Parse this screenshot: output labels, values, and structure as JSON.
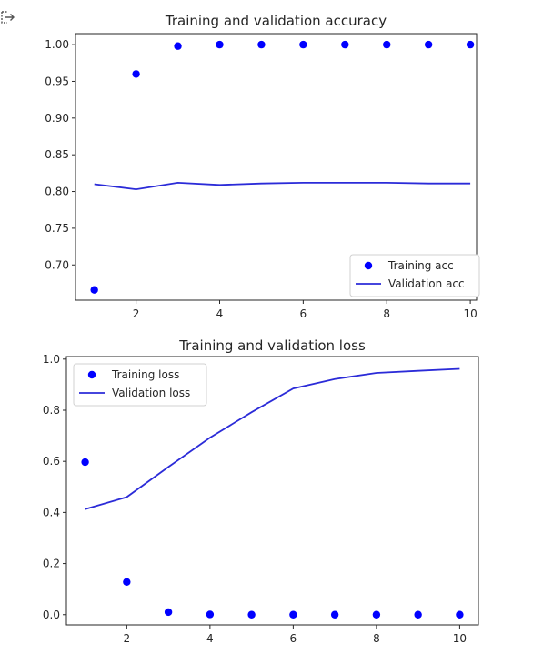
{
  "output_icon": "output-arrow-icon",
  "colors": {
    "train": "#0000ff",
    "val": "#2b2bd8",
    "axis": "#262626"
  },
  "chart_data": [
    {
      "type": "scatter+line",
      "title": "Training and validation accuracy",
      "xlabel": "",
      "ylabel": "",
      "xlim": [
        0.55,
        10.15
      ],
      "ylim": [
        0.652,
        1.015
      ],
      "xticks": [
        2,
        4,
        6,
        8,
        10
      ],
      "yticks": [
        0.7,
        0.75,
        0.8,
        0.85,
        0.9,
        0.95,
        1.0
      ],
      "ytick_labels": [
        "0.70",
        "0.75",
        "0.80",
        "0.85",
        "0.90",
        "0.95",
        "1.00"
      ],
      "xtick_labels": [
        "2",
        "4",
        "6",
        "8",
        "10"
      ],
      "legend": "lower right",
      "grid": false,
      "series": [
        {
          "name": "Training acc",
          "kind": "scatter",
          "x": [
            1,
            2,
            3,
            4,
            5,
            6,
            7,
            8,
            9,
            10
          ],
          "y": [
            0.666,
            0.96,
            0.998,
            1.0,
            1.0,
            1.0,
            1.0,
            1.0,
            1.0,
            1.0
          ]
        },
        {
          "name": "Validation acc",
          "kind": "line",
          "x": [
            1,
            2,
            3,
            4,
            5,
            6,
            7,
            8,
            9,
            10
          ],
          "y": [
            0.81,
            0.803,
            0.812,
            0.809,
            0.811,
            0.812,
            0.812,
            0.812,
            0.811,
            0.811
          ]
        }
      ]
    },
    {
      "type": "scatter+line",
      "title": "Training and validation loss",
      "xlabel": "",
      "ylabel": "",
      "xlim": [
        0.55,
        10.45
      ],
      "ylim": [
        -0.04,
        1.01
      ],
      "xticks": [
        2,
        4,
        6,
        8,
        10
      ],
      "yticks": [
        0.0,
        0.2,
        0.4,
        0.6,
        0.8,
        1.0
      ],
      "ytick_labels": [
        "0.0",
        "0.2",
        "0.4",
        "0.6",
        "0.8",
        "1.0"
      ],
      "xtick_labels": [
        "2",
        "4",
        "6",
        "8",
        "10"
      ],
      "legend": "upper left",
      "grid": false,
      "series": [
        {
          "name": "Training loss",
          "kind": "scatter",
          "x": [
            1,
            2,
            3,
            4,
            5,
            6,
            7,
            8,
            9,
            10
          ],
          "y": [
            0.597,
            0.128,
            0.01,
            0.001,
            0.0,
            0.0,
            0.0,
            0.0,
            0.0,
            0.0
          ]
        },
        {
          "name": "Validation loss",
          "kind": "line",
          "x": [
            1,
            2,
            3,
            4,
            5,
            6,
            7,
            8,
            9,
            10
          ],
          "y": [
            0.413,
            0.46,
            0.578,
            0.693,
            0.792,
            0.885,
            0.922,
            0.946,
            0.954,
            0.962
          ]
        }
      ]
    }
  ]
}
